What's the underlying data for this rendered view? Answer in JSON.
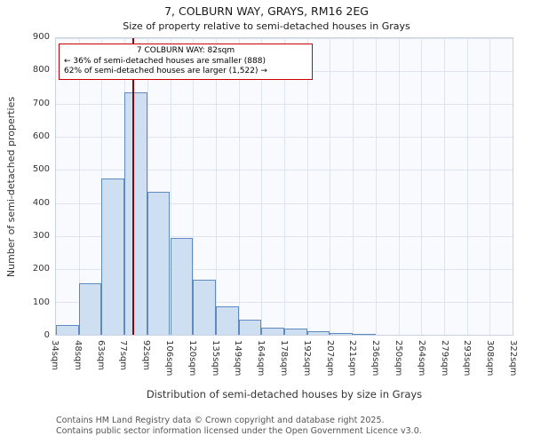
{
  "title": "7, COLBURN WAY, GRAYS, RM16 2EG",
  "subtitle": "Size of property relative to semi-detached houses in Grays",
  "chart_data": {
    "type": "bar",
    "title": "7, COLBURN WAY, GRAYS, RM16 2EG",
    "subtitle": "Size of property relative to semi-detached houses in Grays",
    "xlabel": "Distribution of semi-detached houses by size in Grays",
    "ylabel": "Number of semi-detached properties",
    "ylim": [
      0,
      900
    ],
    "y_ticks": [
      0,
      100,
      200,
      300,
      400,
      500,
      600,
      700,
      800,
      900
    ],
    "tick_labels": [
      "34sqm",
      "48sqm",
      "63sqm",
      "77sqm",
      "92sqm",
      "106sqm",
      "120sqm",
      "135sqm",
      "149sqm",
      "164sqm",
      "178sqm",
      "192sqm",
      "207sqm",
      "221sqm",
      "236sqm",
      "250sqm",
      "264sqm",
      "279sqm",
      "293sqm",
      "308sqm",
      "322sqm"
    ],
    "tick_values": [
      34,
      48,
      63,
      77,
      92,
      106,
      120,
      135,
      149,
      164,
      178,
      192,
      207,
      221,
      236,
      250,
      264,
      279,
      293,
      308,
      322
    ],
    "values": [
      30,
      155,
      475,
      735,
      435,
      293,
      167,
      85,
      45,
      22,
      18,
      12,
      6,
      2,
      0,
      0,
      0,
      0,
      0,
      0
    ],
    "grid": true,
    "bar_fill": "#cfdff2",
    "bar_border": "#6089c0",
    "marker": {
      "value": 82,
      "color": "#990000"
    },
    "annotation": {
      "line1": "7 COLBURN WAY: 82sqm",
      "line2": "← 36% of semi-detached houses are smaller (888)",
      "line3": "62% of semi-detached houses are larger (1,522) →",
      "border_color": "#cc0000"
    }
  },
  "footer": {
    "line1": "Contains HM Land Registry data © Crown copyright and database right 2025.",
    "line2": "Contains public sector information licensed under the Open Government Licence v3.0."
  }
}
